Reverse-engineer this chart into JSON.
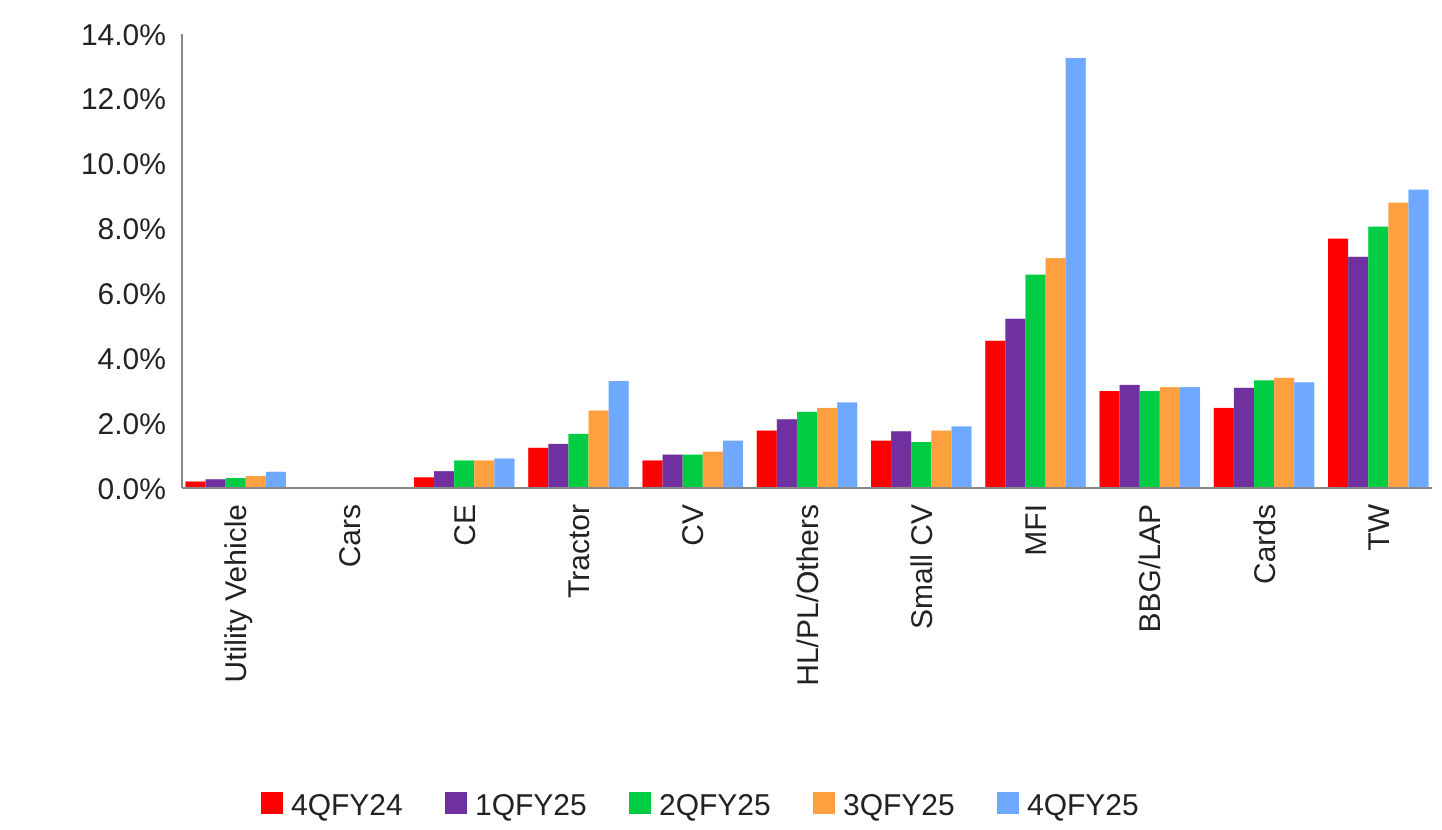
{
  "chart_data": {
    "type": "bar",
    "categories": [
      "Utility Vehicle",
      "Cars",
      "CE",
      "Tractor",
      "CV",
      "HL/PL/Others",
      "Small CV",
      "MFI",
      "BBG/LAP",
      "Cards",
      "TW"
    ],
    "series": [
      {
        "name": "4QFY24",
        "color": "#ff0000",
        "values": [
          0.2,
          null,
          0.33,
          1.24,
          0.85,
          1.77,
          1.46,
          4.54,
          2.99,
          2.47,
          7.69
        ]
      },
      {
        "name": "1QFY25",
        "color": "#7030a0",
        "values": [
          0.27,
          null,
          0.52,
          1.36,
          1.03,
          2.12,
          1.75,
          5.22,
          3.18,
          3.09,
          7.13
        ]
      },
      {
        "name": "2QFY25",
        "color": "#00cc44",
        "values": [
          0.31,
          null,
          0.85,
          1.67,
          1.03,
          2.35,
          1.42,
          6.58,
          2.99,
          3.32,
          8.06
        ]
      },
      {
        "name": "3QFY25",
        "color": "#ffa040",
        "values": [
          0.37,
          null,
          0.85,
          2.39,
          1.12,
          2.47,
          1.77,
          7.09,
          3.11,
          3.4,
          8.8
        ]
      },
      {
        "name": "4QFY25",
        "color": "#6fa8ff",
        "values": [
          0.5,
          null,
          0.91,
          3.3,
          1.46,
          2.64,
          1.9,
          13.26,
          3.11,
          3.26,
          9.2
        ]
      }
    ],
    "ylim": [
      0,
      14
    ],
    "yticks": [
      {
        "value": 0,
        "label": "0.0%"
      },
      {
        "value": 2,
        "label": "2.0%"
      },
      {
        "value": 4,
        "label": "4.0%"
      },
      {
        "value": 6,
        "label": "6.0%"
      },
      {
        "value": 8,
        "label": "8.0%"
      },
      {
        "value": 10,
        "label": "10.0%"
      },
      {
        "value": 12,
        "label": "12.0%"
      },
      {
        "value": 14,
        "label": "14.0%"
      }
    ],
    "grid": false,
    "legend": "bottom"
  }
}
